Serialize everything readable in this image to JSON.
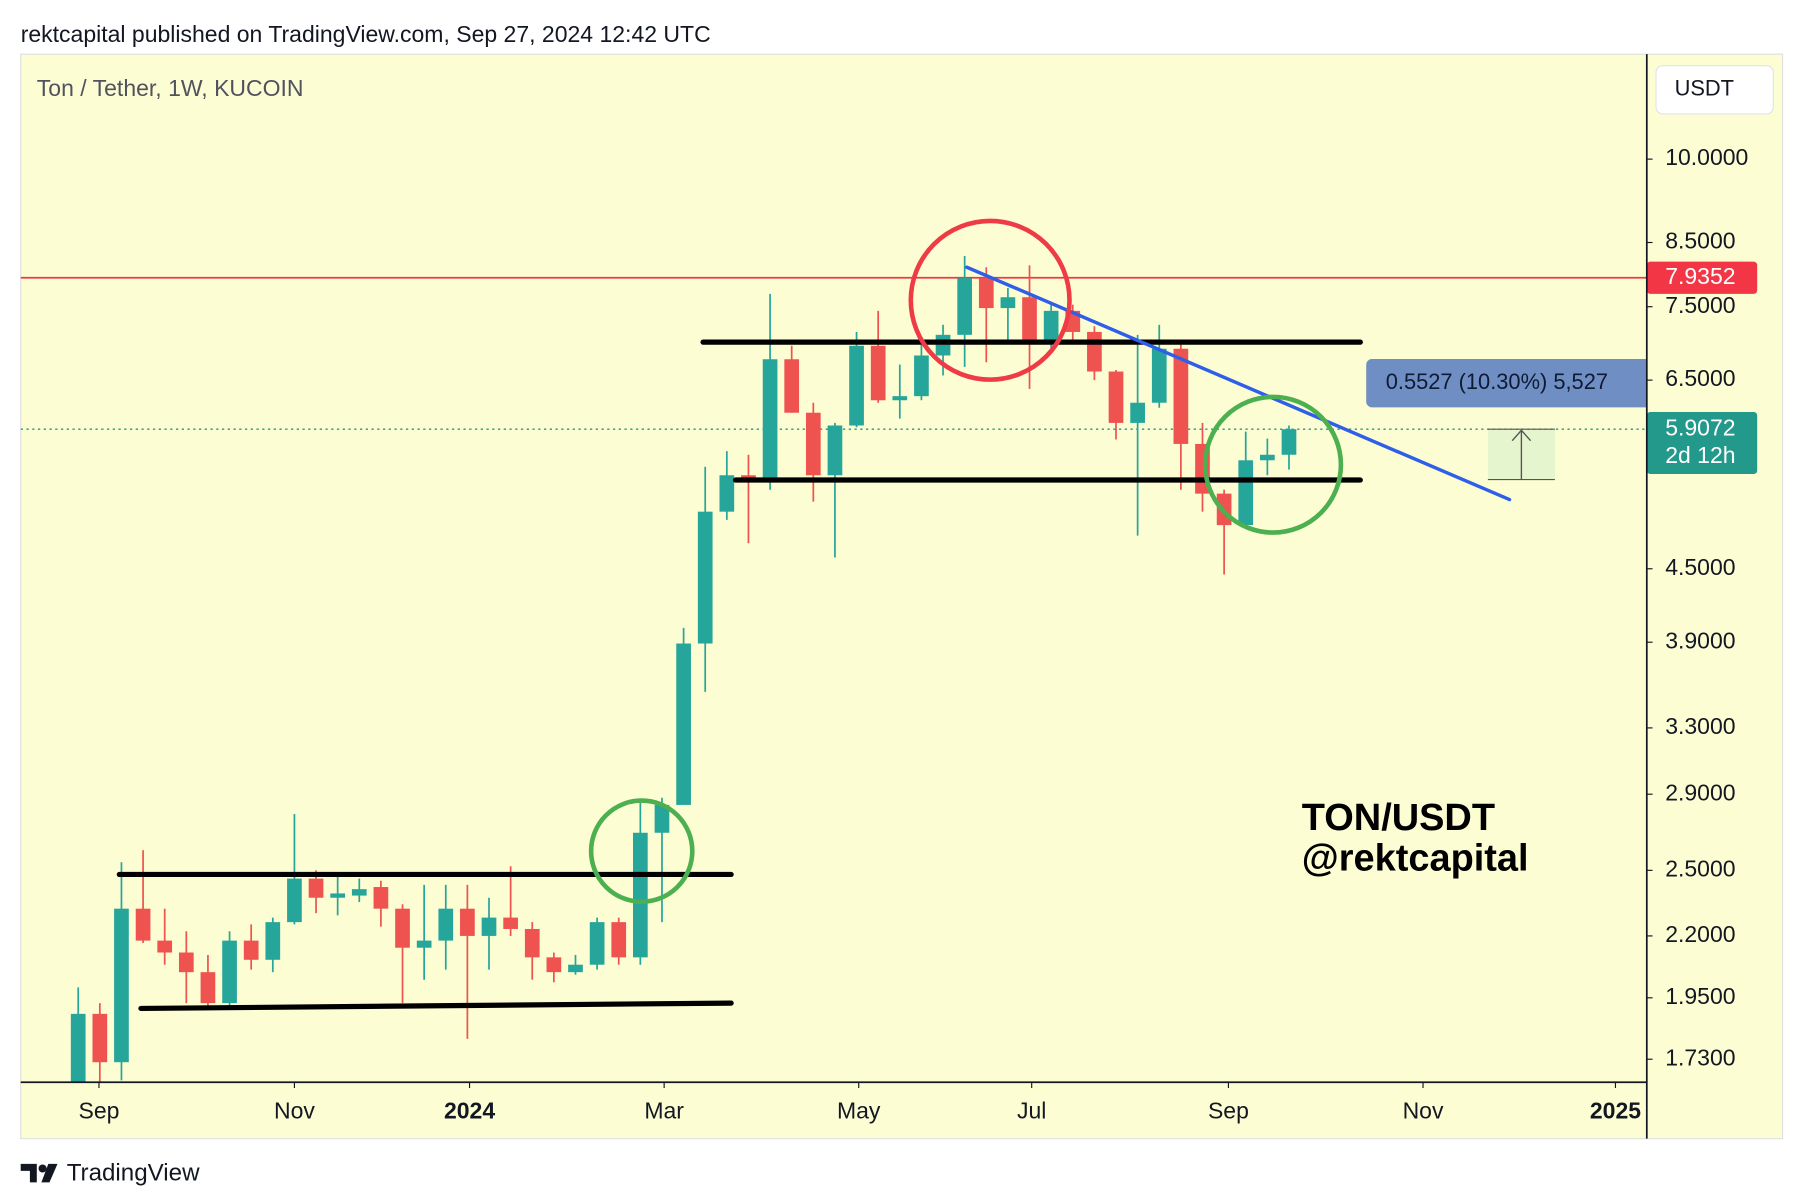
{
  "header": {
    "publisher": "rektcapital published on TradingView.com, Sep 27, 2024 12:42 UTC",
    "brand": "TradingView"
  },
  "chart_data": {
    "type": "candlestick",
    "title": "Ton / Tether, 1W, KUCOIN",
    "currency": "USDT",
    "log_scale": true,
    "up_color": "#26a69a",
    "down_color": "#ef5350",
    "open": [
      1.6,
      1.89,
      1.72,
      2.32,
      2.18,
      2.13,
      2.05,
      1.93,
      2.18,
      2.1,
      2.26,
      2.46,
      2.37,
      2.38,
      2.42,
      2.32,
      2.15,
      2.18,
      2.32,
      2.2,
      2.28,
      2.23,
      2.11,
      2.05,
      2.08,
      2.26,
      2.11,
      2.69,
      2.84,
      3.89,
      5.03,
      5.4,
      5.33,
      6.77,
      6.1,
      5.4,
      5.95,
      6.95,
      6.25,
      6.3,
      6.82,
      7.1,
      7.93,
      7.48,
      7.64,
      7.02,
      7.44,
      7.14,
      6.61,
      5.98,
      6.22,
      6.91,
      5.74,
      5.21,
      4.9,
      5.56,
      5.62
    ],
    "high": [
      1.99,
      1.93,
      2.54,
      2.6,
      2.32,
      2.22,
      2.12,
      2.22,
      2.25,
      2.28,
      2.79,
      2.5,
      2.47,
      2.46,
      2.45,
      2.34,
      2.43,
      2.43,
      2.43,
      2.37,
      2.52,
      2.26,
      2.13,
      2.12,
      2.28,
      2.28,
      2.87,
      2.88,
      4.01,
      5.49,
      5.66,
      5.62,
      7.69,
      6.95,
      6.22,
      5.98,
      7.14,
      7.44,
      6.7,
      7.02,
      7.24,
      8.28,
      8.1,
      7.78,
      8.13,
      7.53,
      7.53,
      7.22,
      6.63,
      7.1,
      7.24,
      7.02,
      5.98,
      5.25,
      5.88,
      5.8,
      5.95
    ],
    "low": [
      1.6,
      1.65,
      1.66,
      2.17,
      2.08,
      1.93,
      1.91,
      1.91,
      2.06,
      2.05,
      2.25,
      2.3,
      2.29,
      2.35,
      2.24,
      1.93,
      2.02,
      2.06,
      1.8,
      2.06,
      2.2,
      2.02,
      2.01,
      2.04,
      2.06,
      2.08,
      2.08,
      2.26,
      2.84,
      3.54,
      4.95,
      4.73,
      5.25,
      6.1,
      5.13,
      4.6,
      5.93,
      6.22,
      6.03,
      6.25,
      6.56,
      6.67,
      6.73,
      7.02,
      6.39,
      6.92,
      6.97,
      6.5,
      5.79,
      4.8,
      6.16,
      5.25,
      5.03,
      4.45,
      4.88,
      5.4,
      5.46
    ],
    "close": [
      1.89,
      1.72,
      2.32,
      2.18,
      2.13,
      2.05,
      1.93,
      2.18,
      2.1,
      2.26,
      2.46,
      2.37,
      2.39,
      2.41,
      2.32,
      2.15,
      2.18,
      2.32,
      2.2,
      2.28,
      2.23,
      2.11,
      2.05,
      2.08,
      2.26,
      2.11,
      2.69,
      2.84,
      3.89,
      5.03,
      5.4,
      5.33,
      6.77,
      6.1,
      5.4,
      5.95,
      6.95,
      6.25,
      6.3,
      6.82,
      7.1,
      7.93,
      7.48,
      7.64,
      7.02,
      7.44,
      7.14,
      6.61,
      5.98,
      6.22,
      6.91,
      5.74,
      5.21,
      4.9,
      5.56,
      5.62,
      5.9072
    ],
    "xlim": [
      -2.66,
      72.55
    ],
    "xticks": [
      {
        "value": 0.96,
        "label": "Sep"
      },
      {
        "value": 10,
        "label": "Nov"
      },
      {
        "value": 18.1,
        "label": "2024",
        "bold": true
      },
      {
        "value": 27.1,
        "label": "Mar"
      },
      {
        "value": 36.1,
        "label": "May"
      },
      {
        "value": 44.1,
        "label": "Jul"
      },
      {
        "value": 53.2,
        "label": "Sep"
      },
      {
        "value": 62.2,
        "label": "Nov"
      },
      {
        "value": 71.1,
        "label": "2025",
        "bold": true
      }
    ],
    "ylim": [
      1.654,
      12.27
    ],
    "yticks": [
      {
        "value": 10,
        "label": "10.0000"
      },
      {
        "value": 8.5,
        "label": "8.5000"
      },
      {
        "value": 7.5,
        "label": "7.5000"
      },
      {
        "value": 6.5,
        "label": "6.5000"
      },
      {
        "value": 4.5,
        "label": "4.5000"
      },
      {
        "value": 3.9,
        "label": "3.9000"
      },
      {
        "value": 3.3,
        "label": "3.3000"
      },
      {
        "value": 2.9,
        "label": "2.9000"
      },
      {
        "value": 2.5,
        "label": "2.5000"
      },
      {
        "value": 2.2,
        "label": "2.2000"
      },
      {
        "value": 1.95,
        "label": "1.9500"
      },
      {
        "value": 1.73,
        "label": "1.7300"
      }
    ],
    "price_line": {
      "value": 7.9352,
      "color": "#f23645"
    },
    "current_price": {
      "value": 5.9072,
      "countdown": "2d 12h",
      "color": "#22998a"
    },
    "drawings": [
      {
        "color": "#000000",
        "x": [
          28.9,
          59.3
        ],
        "y": [
          7.0,
          7.0
        ]
      },
      {
        "color": "#000000",
        "x": [
          30.4,
          59.3
        ],
        "y": [
          5.35,
          5.35
        ]
      },
      {
        "color": "#000000",
        "x": [
          1.9,
          30.2
        ],
        "y": [
          2.48,
          2.48
        ]
      },
      {
        "color": "#000000",
        "x": [
          2.9,
          30.2
        ],
        "y": [
          1.91,
          1.93
        ]
      },
      {
        "color": "#2f5fe8",
        "x": [
          41.1,
          66.2
        ],
        "y": [
          8.1,
          5.15
        ]
      }
    ],
    "measure": {
      "label": "0.5527 (10.30%) 5,527",
      "from": 5.3545,
      "to": 5.9072,
      "x": [
        65.2,
        68.3
      ]
    },
    "annotation": {
      "pair": "TON/USDT",
      "author": "@rektcapital"
    }
  }
}
